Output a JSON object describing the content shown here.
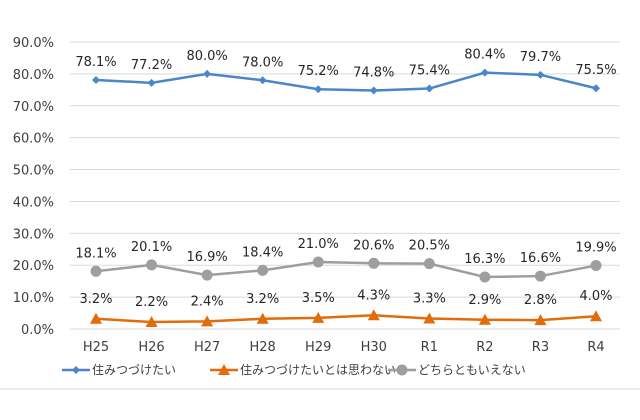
{
  "chart_data": {
    "type": "line",
    "categories": [
      "H25",
      "H26",
      "H27",
      "H28",
      "H29",
      "H30",
      "R1",
      "R2",
      "R3",
      "R4"
    ],
    "ylim": [
      0,
      90
    ],
    "yticks": [
      "0.0%",
      "10.0%",
      "20.0%",
      "30.0%",
      "40.0%",
      "50.0%",
      "60.0%",
      "70.0%",
      "80.0%",
      "90.0%"
    ],
    "grid": true,
    "legend_position": "bottom",
    "series": [
      {
        "name": "住みつづけたい",
        "color": "#4a86c8",
        "marker": "diamond",
        "values": [
          78.1,
          77.2,
          80.0,
          78.0,
          75.2,
          74.8,
          75.4,
          80.4,
          79.7,
          75.5
        ],
        "labels": [
          "78.1%",
          "77.2%",
          "80.0%",
          "78.0%",
          "75.2%",
          "74.8%",
          "75.4%",
          "80.4%",
          "79.7%",
          "75.5%"
        ]
      },
      {
        "name": "住みつづけたいとは思わない",
        "color": "#e36c0a",
        "marker": "triangle",
        "values": [
          3.2,
          2.2,
          2.4,
          3.2,
          3.5,
          4.3,
          3.3,
          2.9,
          2.8,
          4.0
        ],
        "labels": [
          "3.2%",
          "2.2%",
          "2.4%",
          "3.2%",
          "3.5%",
          "4.3%",
          "3.3%",
          "2.9%",
          "2.8%",
          "4.0%"
        ]
      },
      {
        "name": "どちらともいえない",
        "color": "#9e9e9e",
        "marker": "circle",
        "values": [
          18.1,
          20.1,
          16.9,
          18.4,
          21.0,
          20.6,
          20.5,
          16.3,
          16.6,
          19.9
        ],
        "labels": [
          "18.1%",
          "20.1%",
          "16.9%",
          "18.4%",
          "21.0%",
          "20.6%",
          "20.5%",
          "16.3%",
          "16.6%",
          "19.9%"
        ]
      }
    ]
  }
}
